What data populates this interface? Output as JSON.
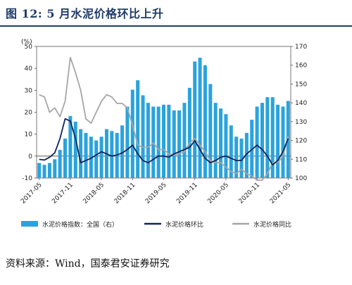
{
  "title": "图 12: 5 月水泥价格环比上升",
  "source": "资料来源：Wind，国泰君安证券研究",
  "colors": {
    "bars": "#2aa3dc",
    "mom": "#12235a",
    "yoy": "#a6a6a6",
    "title": "#1f3a68"
  },
  "chart_data": {
    "type": "bar+line",
    "left_axis_label": "(%)",
    "left_ylim": [
      -10,
      50
    ],
    "left_ticks": [
      -10,
      0,
      10,
      20,
      30,
      40,
      50
    ],
    "right_ylim": [
      100,
      170
    ],
    "right_ticks": [
      100,
      110,
      120,
      130,
      140,
      150,
      160,
      170
    ],
    "x_tick_labels": [
      "2017-05",
      "2017-11",
      "2018-05",
      "2018-11",
      "2019-05",
      "2019-11",
      "2020-05",
      "2020-11",
      "2021-05"
    ],
    "x_tick_index": [
      0,
      6,
      12,
      18,
      24,
      30,
      36,
      42,
      48
    ],
    "x": [
      "2017-05",
      "2017-06",
      "2017-07",
      "2017-08",
      "2017-09",
      "2017-10",
      "2017-11",
      "2017-12",
      "2018-01",
      "2018-02",
      "2018-03",
      "2018-04",
      "2018-05",
      "2018-06",
      "2018-07",
      "2018-08",
      "2018-09",
      "2018-10",
      "2018-11",
      "2018-12",
      "2019-01",
      "2019-02",
      "2019-03",
      "2019-04",
      "2019-05",
      "2019-06",
      "2019-07",
      "2019-08",
      "2019-09",
      "2019-10",
      "2019-11",
      "2019-12",
      "2020-01",
      "2020-02",
      "2020-03",
      "2020-04",
      "2020-05",
      "2020-06",
      "2020-07",
      "2020-08",
      "2020-09",
      "2020-10",
      "2020-11",
      "2020-12",
      "2021-01",
      "2021-02",
      "2021-03",
      "2021-04",
      "2021-05"
    ],
    "series": [
      {
        "name": "水泥价格指数：全国（右）",
        "axis": "right",
        "kind": "bar",
        "values": [
          108,
          107,
          108,
          110,
          115,
          121,
          133,
          130,
          126,
          124,
          122,
          120,
          122,
          126,
          125,
          124,
          128,
          138,
          147,
          152,
          144,
          140,
          138,
          138,
          139,
          139,
          136,
          136,
          140,
          148,
          162,
          164,
          160,
          150,
          140,
          137,
          134,
          128,
          122,
          121,
          124,
          131,
          138,
          140,
          143,
          143,
          139,
          138,
          141
        ]
      },
      {
        "name": "水泥价格环比",
        "axis": "left",
        "kind": "line",
        "values": [
          -1.5,
          -1.8,
          -0.5,
          1.5,
          8,
          17,
          16,
          8,
          -3,
          -2,
          -1,
          0.5,
          2,
          1,
          0,
          0.5,
          1.5,
          3,
          5,
          1,
          -2,
          -3,
          -1.5,
          0,
          0,
          -0.5,
          1,
          2,
          3,
          4,
          7,
          3,
          -1,
          -3,
          -2,
          -0.5,
          0,
          -1,
          -2,
          -2,
          1,
          3,
          5,
          3,
          0,
          -4,
          -2,
          2,
          8
        ]
      },
      {
        "name": "水泥价格同比",
        "axis": "left",
        "kind": "line",
        "values": [
          28,
          27,
          20,
          22,
          18,
          25,
          45,
          38,
          30,
          17,
          15,
          20,
          25,
          28,
          27,
          24,
          24,
          22,
          14,
          5,
          4,
          4,
          6,
          3,
          3,
          1,
          0.5,
          1,
          2,
          6,
          8,
          5,
          2,
          -2,
          -3,
          -3,
          -5,
          -7,
          -8,
          -6,
          -8,
          -9,
          -11,
          -11,
          -8,
          -3,
          -3,
          0,
          9
        ]
      }
    ],
    "legend_position": "bottom"
  }
}
